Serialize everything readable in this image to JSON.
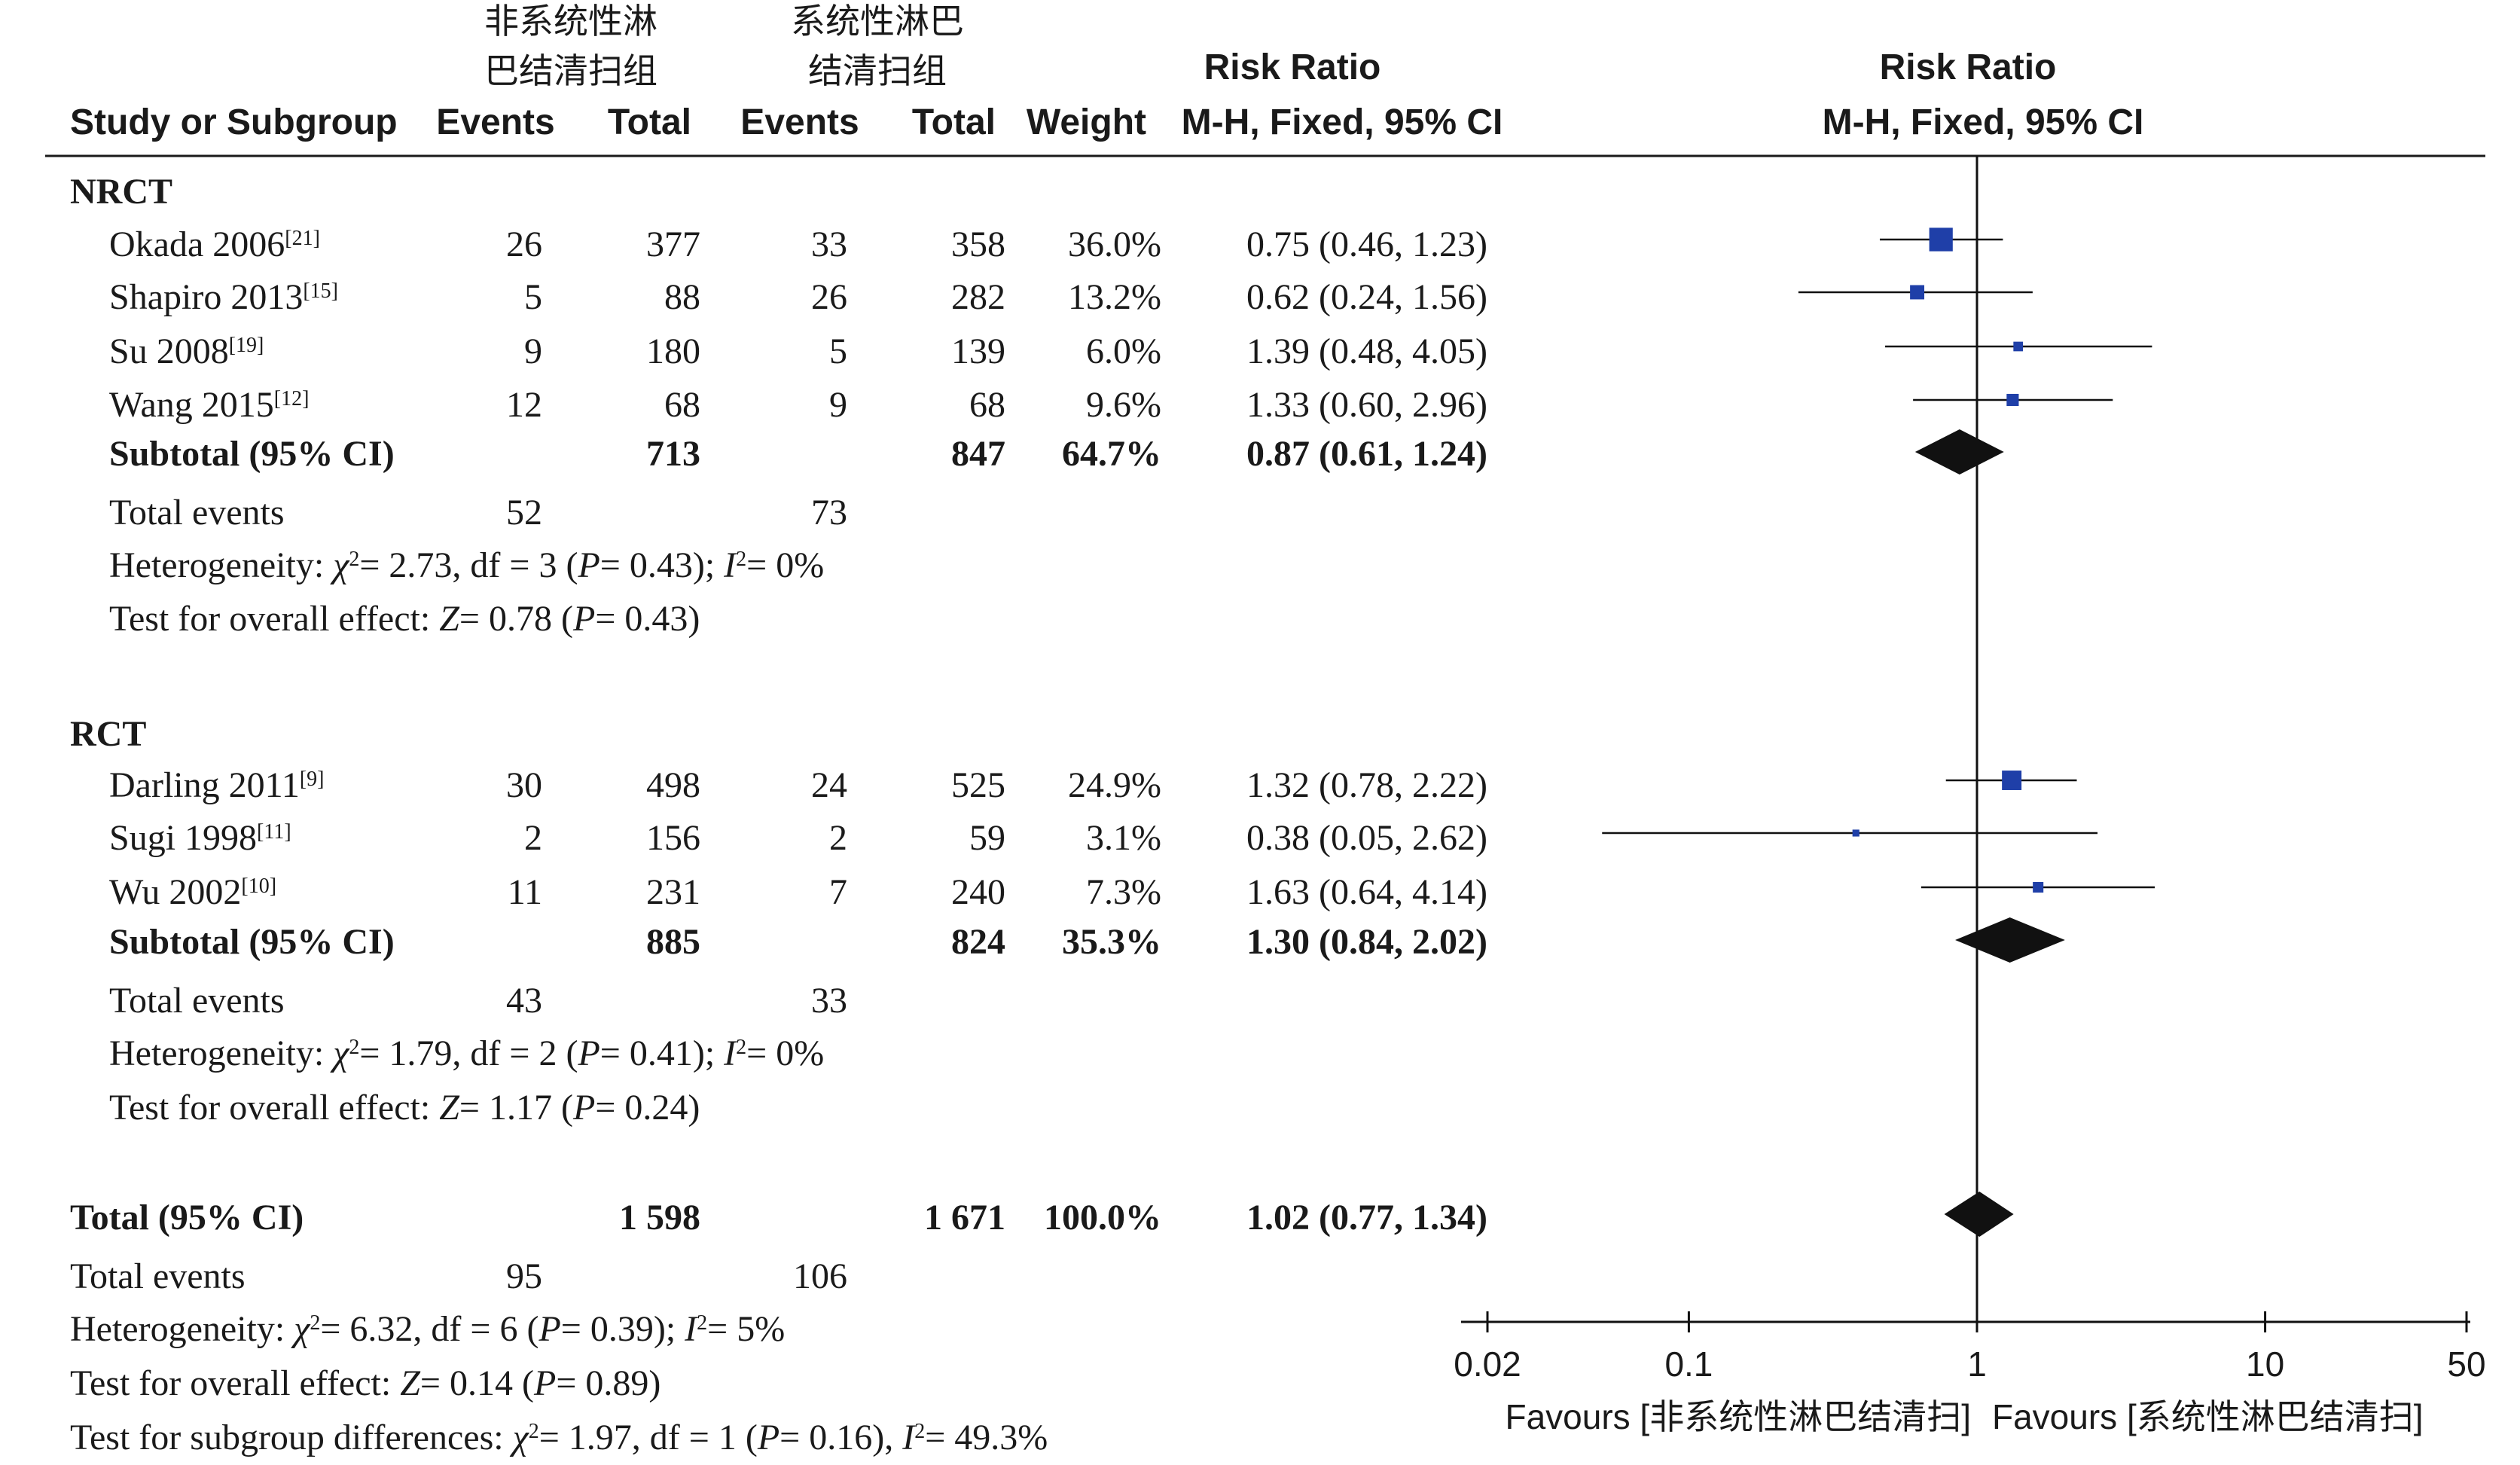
{
  "header": {
    "group1_line1": "非系统性淋",
    "group1_line2": "巴结清扫组",
    "group2_line1": "系统性淋巴",
    "group2_line2": "结清扫组",
    "study_col": "Study or Subgroup",
    "events1": "Events",
    "total1": "Total",
    "events2": "Events",
    "total2": "Total",
    "weight": "Weight",
    "rr_title": "Risk Ratio",
    "rr_method": "M-H, Fixed, 95% CI",
    "plot_title": "Risk Ratio",
    "plot_method": "M-H, Fixed, 95% CI"
  },
  "chart_data": {
    "type": "forest",
    "scale": "log",
    "x_ticks": [
      {
        "value": 0.02,
        "label": "0.02"
      },
      {
        "value": 0.1,
        "label": "0.1"
      },
      {
        "value": 1,
        "label": "1"
      },
      {
        "value": 10,
        "label": "10"
      },
      {
        "value": 50,
        "label": "50"
      }
    ],
    "xlim": [
      0.02,
      50
    ],
    "reference_line": 1,
    "favours_left": "Favours [非系统性淋巴结清扫]",
    "favours_right": "Favours [系统性淋巴结清扫]",
    "marker_color": "#1f3fa8",
    "groups": [
      {
        "name": "NRCT",
        "studies": [
          {
            "study": "Okada 2006",
            "ref": "[21]",
            "e1": "26",
            "t1": "377",
            "e2": "33",
            "t2": "358",
            "weight": "36.0%",
            "weight_val": 36.0,
            "ci_text": "0.75 (0.46, 1.23)",
            "rr": 0.75,
            "lo": 0.46,
            "hi": 1.23
          },
          {
            "study": "Shapiro 2013",
            "ref": "[15]",
            "e1": "5",
            "t1": "88",
            "e2": "26",
            "t2": "282",
            "weight": "13.2%",
            "weight_val": 13.2,
            "ci_text": "0.62 (0.24, 1.56)",
            "rr": 0.62,
            "lo": 0.24,
            "hi": 1.56
          },
          {
            "study": "Su 2008",
            "ref": "[19]",
            "e1": "9",
            "t1": "180",
            "e2": "5",
            "t2": "139",
            "weight": "6.0%",
            "weight_val": 6.0,
            "ci_text": "1.39 (0.48, 4.05)",
            "rr": 1.39,
            "lo": 0.48,
            "hi": 4.05
          },
          {
            "study": "Wang 2015",
            "ref": "[12]",
            "e1": "12",
            "t1": "68",
            "e2": "9",
            "t2": "68",
            "weight": "9.6%",
            "weight_val": 9.6,
            "ci_text": "1.33 (0.60, 2.96)",
            "rr": 1.33,
            "lo": 0.6,
            "hi": 2.96
          }
        ],
        "subtotal": {
          "label": "Subtotal (95% CI)",
          "t1": "713",
          "t2": "847",
          "weight": "64.7%",
          "ci_text": "0.87 (0.61, 1.24)",
          "rr": 0.87,
          "lo": 0.61,
          "hi": 1.24
        },
        "total_events": {
          "label": "Total events",
          "e1": "52",
          "e2": "73"
        },
        "heterogeneity": {
          "prefix": "Heterogeneity: ",
          "chi_sym": "χ",
          "sup2": "2",
          "p1": "= 2.73, df = 3 (",
          "p_sym": "P",
          "p2": "= 0.43); ",
          "i_sym": "I",
          "sup2b": "2",
          "p3": "= 0%"
        },
        "overall": {
          "prefix": "Test for overall effect: ",
          "z_sym": "Z",
          "p1": "= 0.78 (",
          "p_sym": "P",
          "p2": "= 0.43)"
        }
      },
      {
        "name": "RCT",
        "studies": [
          {
            "study": "Darling 2011",
            "ref": "[9]",
            "e1": "30",
            "t1": "498",
            "e2": "24",
            "t2": "525",
            "weight": "24.9%",
            "weight_val": 24.9,
            "ci_text": "1.32 (0.78, 2.22)",
            "rr": 1.32,
            "lo": 0.78,
            "hi": 2.22
          },
          {
            "study": "Sugi 1998",
            "ref": "[11]",
            "e1": "2",
            "t1": "156",
            "e2": "2",
            "t2": "59",
            "weight": "3.1%",
            "weight_val": 3.1,
            "ci_text": "0.38 (0.05, 2.62)",
            "rr": 0.38,
            "lo": 0.05,
            "hi": 2.62
          },
          {
            "study": "Wu 2002",
            "ref": "[10]",
            "e1": "11",
            "t1": "231",
            "e2": "7",
            "t2": "240",
            "weight": "7.3%",
            "weight_val": 7.3,
            "ci_text": "1.63 (0.64, 4.14)",
            "rr": 1.63,
            "lo": 0.64,
            "hi": 4.14
          }
        ],
        "subtotal": {
          "label": "Subtotal (95% CI)",
          "t1": "885",
          "t2": "824",
          "weight": "35.3%",
          "ci_text": "1.30 (0.84, 2.02)",
          "rr": 1.3,
          "lo": 0.84,
          "hi": 2.02
        },
        "total_events": {
          "label": "Total events",
          "e1": "43",
          "e2": "33"
        },
        "heterogeneity": {
          "prefix": "Heterogeneity: ",
          "chi_sym": "χ",
          "sup2": "2",
          "p1": "= 1.79, df = 2 (",
          "p_sym": "P",
          "p2": "= 0.41); ",
          "i_sym": "I",
          "sup2b": "2",
          "p3": "= 0%"
        },
        "overall": {
          "prefix": "Test for overall effect: ",
          "z_sym": "Z",
          "p1": "= 1.17 (",
          "p_sym": "P",
          "p2": "= 0.24)"
        }
      }
    ],
    "total": {
      "label": "Total (95% CI)",
      "t1": "1 598",
      "t2": "1 671",
      "weight": "100.0%",
      "ci_text": "1.02 (0.77, 1.34)",
      "rr": 1.02,
      "lo": 0.77,
      "hi": 1.34
    },
    "total_events": {
      "label": "Total events",
      "e1": "95",
      "e2": "106"
    },
    "heterogeneity": {
      "prefix": "Heterogeneity: ",
      "chi_sym": "χ",
      "sup2": "2",
      "p1": "= 6.32, df = 6 (",
      "p_sym": "P",
      "p2": "= 0.39); ",
      "i_sym": "I",
      "sup2b": "2",
      "p3": "= 5%"
    },
    "overall": {
      "prefix": "Test for overall effect: ",
      "z_sym": "Z",
      "p1": "= 0.14 (",
      "p_sym": "P",
      "p2": "= 0.89)"
    },
    "subgroup": {
      "prefix": "Test for subgroup differences: ",
      "chi_sym": "χ",
      "sup2": "2",
      "p1": "= 1.97, df = 1 (",
      "p_sym": "P",
      "p2": "= 0.16), ",
      "i_sym": "I",
      "sup2b": "2",
      "p3": "= 49.3%"
    }
  }
}
